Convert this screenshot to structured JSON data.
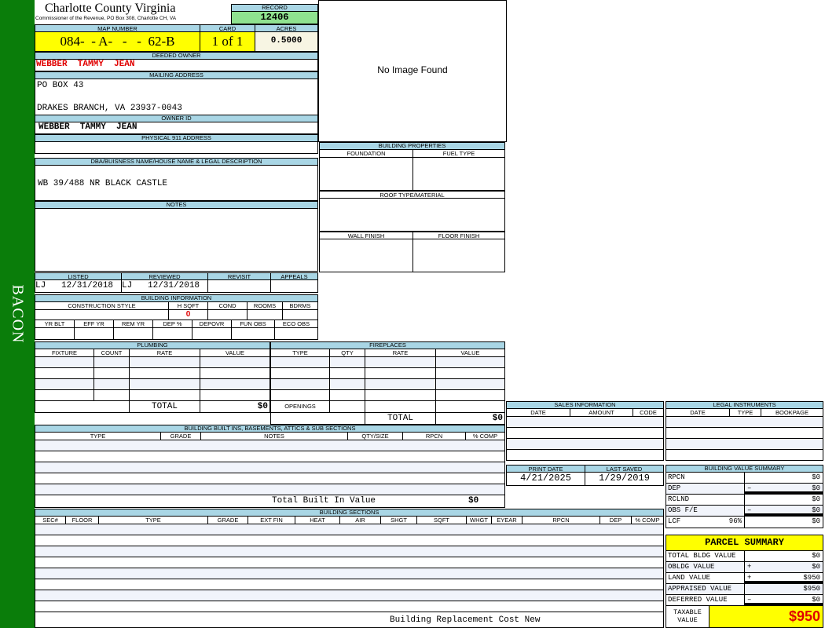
{
  "sidebar": {
    "district": "BACON"
  },
  "header": {
    "county": "Charlotte County Virginia",
    "subtitle": "Commissioner of the Revenue, PO Box 308, Charlotte CH, VA",
    "record_label": "RECORD",
    "record": "12406"
  },
  "parcel": {
    "map_label": "MAP NUMBER",
    "map": "084-  - A-   -   -  62-B",
    "card_label": "CARD",
    "card": "1 of 1",
    "acres_label": "ACRES",
    "acres": "0.5000"
  },
  "owner": {
    "deeded_label": "DEEDED OWNER",
    "deeded": "WEBBER  TAMMY  JEAN",
    "mailing_label": "MAILING ADDRESS",
    "mailing_line1": "PO BOX 43",
    "mailing_line2": "DRAKES BRANCH, VA 23937-0043",
    "owner_id_label": "OWNER ID",
    "owner_id": "WEBBER  TAMMY  JEAN",
    "physical_label": "PHYSICAL 911 ADDRESS",
    "physical": ""
  },
  "legal": {
    "label": "DBA/BUISNESS NAME/HOUSE NAME & LEGAL DESCRIPTION",
    "value": "WB 39/488 NR BLACK CASTLE",
    "notes_label": "NOTES"
  },
  "image": {
    "text": "No Image Found"
  },
  "building_properties": {
    "label": "BUILDING PROPERTIES",
    "foundation": "FOUNDATION",
    "fuel": "FUEL TYPE",
    "roof": "ROOF TYPE/MATERIAL",
    "wall": "WALL FINISH",
    "floor": "FLOOR FINISH"
  },
  "review": {
    "listed_label": "LISTED",
    "listed": "LJ   12/31/2018",
    "reviewed_label": "REVIEWED",
    "reviewed": "LJ   12/31/2018",
    "revisit_label": "REVISIT",
    "appeals_label": "APPEALS"
  },
  "building_info": {
    "label": "BUILDING INFORMATION",
    "cols1": [
      "CONSTRUCTION STYLE",
      "H SQFT",
      "COND",
      "ROOMS",
      "BDRMS"
    ],
    "hsqft": "0",
    "cols2": [
      "YR BLT",
      "EFF YR",
      "REM YR",
      "DEP %",
      "DEPOVR",
      "FUN OBS",
      "ECO OBS"
    ]
  },
  "plumbing": {
    "label": "PLUMBING",
    "cols": [
      "FIXTURE",
      "COUNT",
      "RATE",
      "VALUE"
    ],
    "total_label": "TOTAL",
    "total": "$0"
  },
  "fireplaces": {
    "label": "FIREPLACES",
    "cols": [
      "TYPE",
      "QTY",
      "RATE",
      "VALUE"
    ],
    "openings": "OPENINGS",
    "total_label": "TOTAL",
    "total": "$0"
  },
  "built_ins": {
    "label": "BUILDING BUILT INS, BASEMENTS, ATTICS & SUB SECTIONS",
    "cols": [
      "TYPE",
      "GRADE",
      "NOTES",
      "QTY/SIZE",
      "RPCN",
      "% COMP"
    ],
    "total_label": "Total Built In Value",
    "total": "$0"
  },
  "sections": {
    "label": "BUILDING SECTIONS",
    "cols": [
      "SEC#",
      "FLOOR",
      "TYPE",
      "GRADE",
      "EXT FIN",
      "HEAT",
      "AIR",
      "SHGT",
      "SQFT",
      "WHGT",
      "EYEAR",
      "RPCN",
      "DEP",
      "% COMP"
    ],
    "footer": "Building Replacement Cost New"
  },
  "sales": {
    "label": "SALES INFORMATION",
    "cols": [
      "DATE",
      "AMOUNT",
      "CODE"
    ]
  },
  "instruments": {
    "label": "LEGAL INSTRUMENTS",
    "cols": [
      "DATE",
      "TYPE",
      "BOOKPAGE"
    ]
  },
  "dates": {
    "print_label": "PRINT DATE",
    "print": "4/21/2025",
    "saved_label": "LAST SAVED",
    "saved": "1/29/2019"
  },
  "value_summary": {
    "label": "BUILDING VALUE SUMMARY",
    "rows": [
      {
        "label": "RPCN",
        "op": "",
        "value": "$0"
      },
      {
        "label": "DEP",
        "op": "–",
        "value": "$0"
      },
      {
        "label": "RCLND",
        "op": "",
        "value": "$0"
      },
      {
        "label": "OBS F/E",
        "op": "–",
        "value": "$0"
      },
      {
        "label": "LCF",
        "pct": "96%",
        "op": "",
        "value": "$0"
      }
    ]
  },
  "parcel_summary": {
    "label": "PARCEL SUMMARY",
    "rows": [
      {
        "label": "TOTAL BLDG VALUE",
        "op": "",
        "value": "$0"
      },
      {
        "label": "OBLDG VALUE",
        "op": "+",
        "value": "$0"
      },
      {
        "label": "LAND VALUE",
        "op": "+",
        "value": "$950"
      },
      {
        "label": "APPRAISED VALUE",
        "op": "",
        "value": "$950"
      },
      {
        "label": "DEFERRED VALUE",
        "op": "–",
        "value": "$0"
      }
    ],
    "taxable_label": "TAXABLE VALUE",
    "taxable": "$950"
  },
  "colors": {
    "sidebar": "#0a7d0a",
    "header": "#a9d6e5",
    "highlight": "#ffff00",
    "record": "#8fe28f",
    "owner": "#e00000"
  }
}
